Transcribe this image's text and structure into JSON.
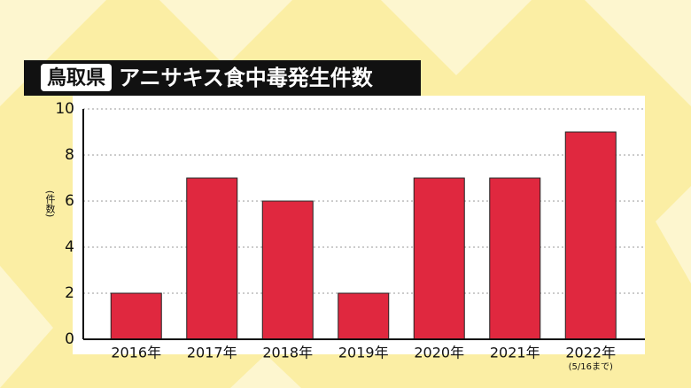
{
  "chart_data": {
    "type": "bar",
    "title_badge": "鳥取県",
    "title": "アニサキス食中毒発生件数",
    "y_label": "(件数)",
    "categories": [
      "2016年",
      "2017年",
      "2018年",
      "2019年",
      "2020年",
      "2021年",
      "2022年"
    ],
    "category_notes": [
      null,
      null,
      null,
      null,
      null,
      null,
      "(5/16まで)"
    ],
    "values": [
      2,
      7,
      6,
      2,
      7,
      7,
      9
    ],
    "color": "#e0283f",
    "ylim": [
      0,
      10
    ],
    "yticks": [
      0,
      2,
      4,
      6,
      8,
      10
    ],
    "grid": true
  }
}
